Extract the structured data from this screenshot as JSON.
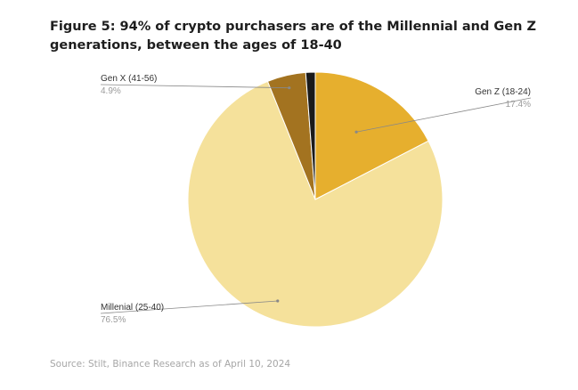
{
  "figure": {
    "title": "Figure 5: 94% of crypto purchasers are of the Millennial and Gen Z generations, between the ages of 18-40",
    "source": "Source: Stilt, Binance Research as of April 10, 2024"
  },
  "chart_data": {
    "type": "pie",
    "slices": [
      {
        "label": "Gen Z (18-24)",
        "value": 17.4,
        "display": "17.4%",
        "color": "#E6AF2E"
      },
      {
        "label": "Millenial (25-40)",
        "value": 76.5,
        "display": "76.5%",
        "color": "#F5E19B"
      },
      {
        "label": "Gen X (41-56)",
        "value": 4.9,
        "display": "4.9%",
        "color": "#A37320"
      },
      {
        "label": "",
        "value": 1.2,
        "display": "",
        "color": "#1A1A1A"
      }
    ]
  }
}
